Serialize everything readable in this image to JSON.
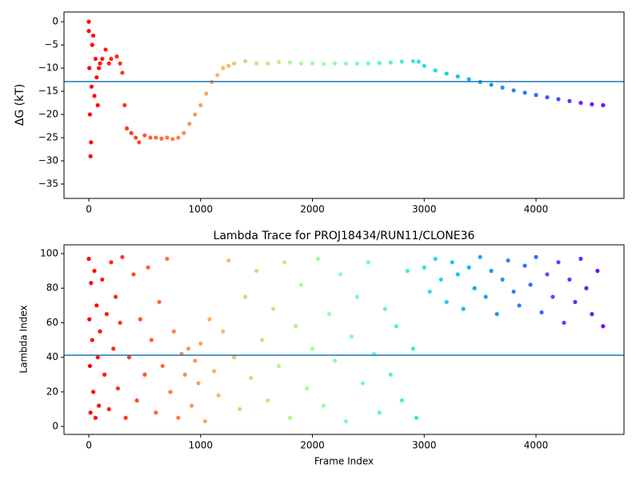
{
  "chart_data": [
    {
      "type": "scatter",
      "ylabel": "ΔG (kT)",
      "colormap": "rainbow_r",
      "hline": -12.9,
      "hline_color": "#1f77b4",
      "xlim": [
        -222,
        4787
      ],
      "ylim": [
        -38.1,
        2.1
      ],
      "xticks": [
        0,
        1000,
        2000,
        3000,
        4000
      ],
      "yticks": [
        {
          "value": -35,
          "label": "−35"
        },
        {
          "value": -30,
          "label": "−30"
        },
        {
          "value": -25,
          "label": "−25"
        },
        {
          "value": -20,
          "label": "−20"
        },
        {
          "value": -15,
          "label": "−15"
        },
        {
          "value": -10,
          "label": "−10"
        },
        {
          "value": -5,
          "label": "−5"
        },
        0
      ],
      "x": [
        0,
        0,
        5,
        10,
        15,
        20,
        25,
        30,
        40,
        50,
        60,
        70,
        80,
        90,
        100,
        120,
        150,
        180,
        200,
        250,
        280,
        300,
        320,
        340,
        380,
        420,
        450,
        500,
        550,
        600,
        650,
        700,
        750,
        800,
        850,
        900,
        950,
        1000,
        1050,
        1100,
        1150,
        1200,
        1250,
        1300,
        1400,
        1500,
        1600,
        1700,
        1800,
        1900,
        2000,
        2100,
        2200,
        2300,
        2400,
        2500,
        2600,
        2700,
        2800,
        2900,
        2950,
        3000,
        3100,
        3200,
        3300,
        3400,
        3500,
        3600,
        3700,
        3800,
        3900,
        4000,
        4100,
        4200,
        4300,
        4400,
        4500,
        4600
      ],
      "values": [
        0,
        -2,
        -10,
        -20,
        -29,
        -26,
        -14,
        -5,
        -3,
        -16,
        -8,
        -12,
        -18,
        -10,
        -9,
        -8,
        -6,
        -9,
        -8,
        -7.5,
        -9,
        -11,
        -18,
        -23,
        -24,
        -25,
        -26,
        -24.5,
        -25,
        -25,
        -25.2,
        -25,
        -25.3,
        -25,
        -24,
        -22,
        -20,
        -18,
        -15.5,
        -13,
        -11.5,
        -10,
        -9.5,
        -9,
        -8.5,
        -9,
        -9,
        -8.7,
        -8.8,
        -9,
        -9,
        -9.1,
        -9,
        -9,
        -9,
        -9,
        -8.9,
        -8.8,
        -8.6,
        -8.5,
        -8.6,
        -9.5,
        -10.5,
        -11.2,
        -11.8,
        -12.4,
        -13,
        -13.6,
        -14.2,
        -14.8,
        -15.3,
        -15.8,
        -16.3,
        -16.7,
        -17.1,
        -17.5,
        -17.8,
        -18
      ]
    },
    {
      "type": "scatter",
      "title": "Lambda Trace for PROJ18434/RUN11/CLONE36",
      "xlabel": "Frame Index",
      "ylabel": "Lambda Index",
      "colormap": "rainbow_r",
      "hline": 41.2,
      "hline_color": "#1f77b4",
      "xlim": [
        -222,
        4787
      ],
      "ylim": [
        -4.6,
        105.1
      ],
      "xticks": [
        0,
        1000,
        2000,
        3000,
        4000
      ],
      "yticks": [
        0,
        20,
        40,
        60,
        80,
        100
      ],
      "x": [
        0,
        5,
        10,
        15,
        20,
        30,
        40,
        50,
        60,
        70,
        80,
        90,
        100,
        120,
        140,
        160,
        180,
        200,
        220,
        240,
        260,
        280,
        300,
        330,
        360,
        400,
        430,
        460,
        500,
        530,
        560,
        600,
        630,
        660,
        700,
        730,
        760,
        800,
        830,
        860,
        890,
        920,
        950,
        980,
        1000,
        1040,
        1080,
        1120,
        1160,
        1200,
        1250,
        1300,
        1350,
        1400,
        1450,
        1500,
        1550,
        1600,
        1650,
        1700,
        1750,
        1800,
        1850,
        1900,
        1950,
        2000,
        2050,
        2100,
        2150,
        2200,
        2250,
        2300,
        2350,
        2400,
        2450,
        2500,
        2550,
        2600,
        2650,
        2700,
        2750,
        2800,
        2850,
        2900,
        2930,
        3000,
        3050,
        3100,
        3150,
        3200,
        3250,
        3300,
        3350,
        3400,
        3450,
        3500,
        3550,
        3600,
        3650,
        3700,
        3750,
        3800,
        3850,
        3900,
        3950,
        4000,
        4050,
        4100,
        4150,
        4200,
        4250,
        4300,
        4350,
        4400,
        4450,
        4500,
        4550,
        4600
      ],
      "values": [
        97,
        62,
        35,
        8,
        83,
        50,
        20,
        90,
        5,
        70,
        40,
        12,
        55,
        85,
        30,
        65,
        10,
        95,
        45,
        75,
        22,
        60,
        98,
        5,
        40,
        88,
        15,
        62,
        30,
        92,
        50,
        8,
        72,
        35,
        97,
        20,
        55,
        5,
        42,
        30,
        45,
        12,
        38,
        25,
        48,
        3,
        62,
        32,
        18,
        55,
        96,
        40,
        10,
        75,
        28,
        90,
        50,
        15,
        68,
        35,
        95,
        5,
        58,
        82,
        22,
        45,
        97,
        12,
        65,
        38,
        88,
        3,
        52,
        75,
        25,
        95,
        42,
        8,
        68,
        30,
        58,
        15,
        90,
        45,
        5,
        92,
        78,
        97,
        85,
        72,
        95,
        88,
        68,
        92,
        80,
        98,
        75,
        90,
        65,
        85,
        96,
        78,
        70,
        93,
        82,
        98,
        66,
        88,
        75,
        95,
        60,
        85,
        72,
        97,
        80,
        65,
        90,
        58
      ]
    }
  ]
}
